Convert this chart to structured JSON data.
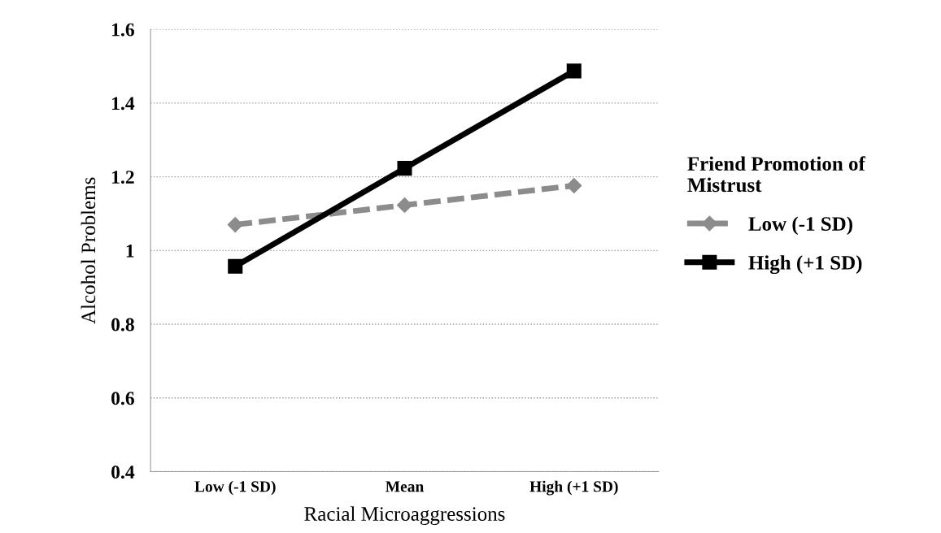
{
  "chart_data": {
    "type": "line",
    "xlabel": "Racial Microaggressions",
    "ylabel": "Alcohol Problems",
    "legend_title": "Friend Promotion of\nMistrust",
    "categories": [
      "Low (-1 SD)",
      "Mean",
      "High (+1 SD)"
    ],
    "series": [
      {
        "name": "Low (-1 SD)",
        "color": "#8c8c8c",
        "values": [
          1.07,
          1.123,
          1.176
        ],
        "marker": "diamond",
        "line_style": "dashed"
      },
      {
        "name": "High (+1 SD)",
        "color": "#000000",
        "values": [
          0.957,
          1.223,
          1.487
        ],
        "marker": "square",
        "line_style": "solid"
      }
    ],
    "ylim": [
      0.4,
      1.6
    ],
    "yticks": [
      {
        "value": 0.4,
        "label": "0.4"
      },
      {
        "value": 0.6,
        "label": "0.6"
      },
      {
        "value": 0.8,
        "label": "0.8"
      },
      {
        "value": 1.0,
        "label": "1"
      },
      {
        "value": 1.2,
        "label": "1.2"
      },
      {
        "value": 1.4,
        "label": "1.4"
      },
      {
        "value": 1.6,
        "label": "1.6"
      }
    ],
    "grid": "y",
    "legend": "right"
  }
}
